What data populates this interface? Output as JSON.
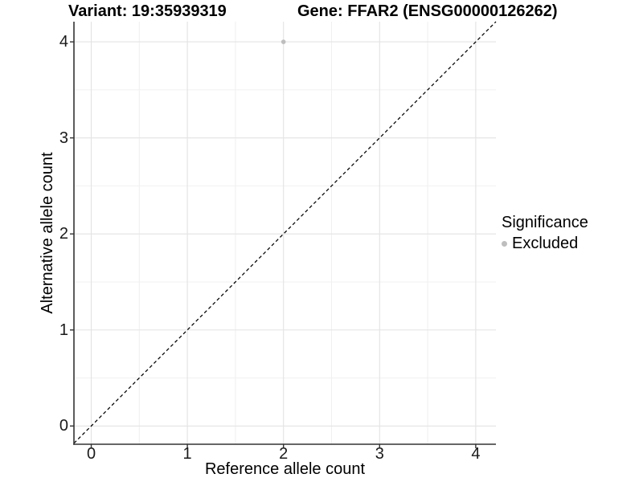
{
  "chart_data": {
    "type": "scatter",
    "title_left": "Variant: 19:35939319",
    "title_right": "Gene: FFAR2 (ENSG00000126262)",
    "xlabel": "Reference allele count",
    "ylabel": "Alternative allele count",
    "xlim": [
      -0.18,
      4.21
    ],
    "ylim": [
      -0.19,
      4.21
    ],
    "x_major_ticks": [
      0,
      1,
      2,
      3,
      4
    ],
    "y_major_ticks": [
      0,
      1,
      2,
      3,
      4
    ],
    "x_minor_ticks": [
      0.5,
      1.5,
      2.5,
      3.5
    ],
    "y_minor_ticks": [
      0.5,
      1.5,
      2.5,
      3.5
    ],
    "grid": true,
    "legend_position": "right",
    "points": [
      {
        "x": 2,
        "y": 4,
        "series": "Excluded"
      }
    ],
    "reference_line": {
      "kind": "abline",
      "slope": 1,
      "intercept": 0,
      "style": "dashed"
    },
    "legend": {
      "title": "Significance",
      "items": [
        {
          "label": "Excluded",
          "color": "#BEBEBE",
          "marker": "circle"
        }
      ]
    }
  },
  "colors": {
    "point": "#BEBEBE",
    "grid_major": "#E3E3E3",
    "grid_minor": "#F0F0F0",
    "axis": "#333333",
    "tick_text": "#1a1a1a",
    "title_text": "#000000",
    "reference_line": "#000000",
    "background": "#FFFFFF"
  }
}
